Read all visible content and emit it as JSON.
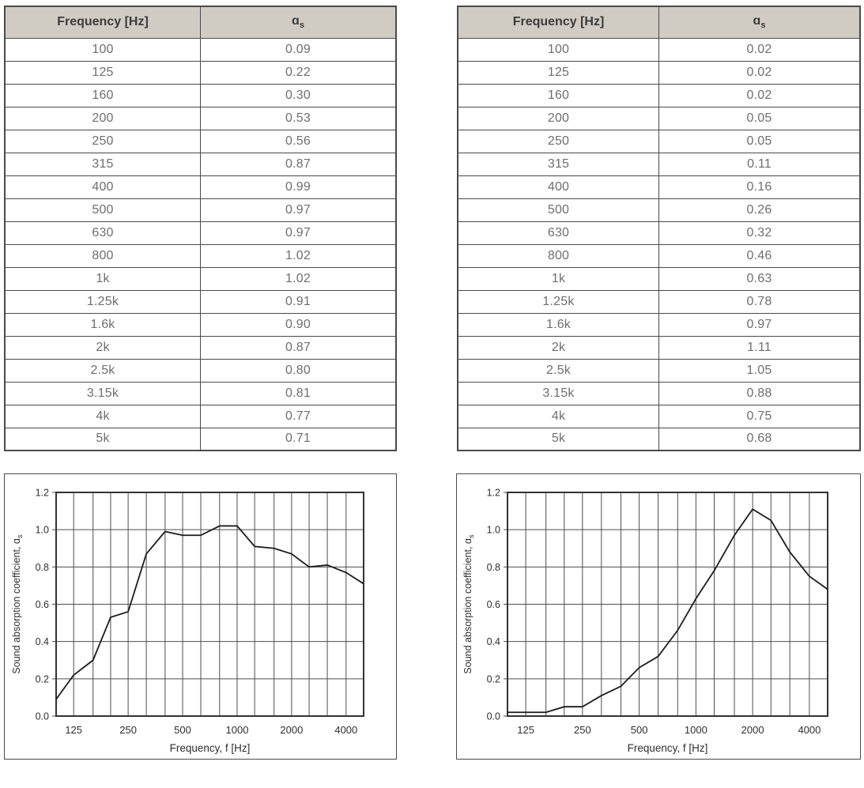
{
  "colors": {
    "header_bg": "#d1ccc3",
    "table_border": "#4a4a4a",
    "header_text": "#3b3b3b",
    "cell_text": "#6e6e6e",
    "chart_border": "#4a4a4a",
    "grid_line": "#4d4d4d",
    "data_line": "#1c1c1c",
    "tick_text": "#2e2e2e",
    "page_bg": "#ffffff"
  },
  "tables": [
    {
      "header_freq": "Frequency [Hz]",
      "header_alpha": "ɑ",
      "header_alpha_sub": "s",
      "rows": [
        [
          "100",
          "0.09"
        ],
        [
          "125",
          "0.22"
        ],
        [
          "160",
          "0.30"
        ],
        [
          "200",
          "0.53"
        ],
        [
          "250",
          "0.56"
        ],
        [
          "315",
          "0.87"
        ],
        [
          "400",
          "0.99"
        ],
        [
          "500",
          "0.97"
        ],
        [
          "630",
          "0.97"
        ],
        [
          "800",
          "1.02"
        ],
        [
          "1k",
          "1.02"
        ],
        [
          "1.25k",
          "0.91"
        ],
        [
          "1.6k",
          "0.90"
        ],
        [
          "2k",
          "0.87"
        ],
        [
          "2.5k",
          "0.80"
        ],
        [
          "3.15k",
          "0.81"
        ],
        [
          "4k",
          "0.77"
        ],
        [
          "5k",
          "0.71"
        ]
      ]
    },
    {
      "header_freq": "Frequency [Hz]",
      "header_alpha": "ɑ",
      "header_alpha_sub": "s",
      "rows": [
        [
          "100",
          "0.02"
        ],
        [
          "125",
          "0.02"
        ],
        [
          "160",
          "0.02"
        ],
        [
          "200",
          "0.05"
        ],
        [
          "250",
          "0.05"
        ],
        [
          "315",
          "0.11"
        ],
        [
          "400",
          "0.16"
        ],
        [
          "500",
          "0.26"
        ],
        [
          "630",
          "0.32"
        ],
        [
          "800",
          "0.46"
        ],
        [
          "1k",
          "0.63"
        ],
        [
          "1.25k",
          "0.78"
        ],
        [
          "1.6k",
          "0.97"
        ],
        [
          "2k",
          "1.11"
        ],
        [
          "2.5k",
          "1.05"
        ],
        [
          "3.15k",
          "0.88"
        ],
        [
          "4k",
          "0.75"
        ],
        [
          "5k",
          "0.68"
        ]
      ]
    }
  ],
  "chart_data": [
    {
      "type": "line",
      "xscale": "log",
      "xlim": [
        100,
        5000
      ],
      "ylim": [
        0,
        1.2
      ],
      "x": [
        100,
        125,
        160,
        200,
        250,
        315,
        400,
        500,
        630,
        800,
        1000,
        1250,
        1600,
        2000,
        2500,
        3150,
        4000,
        5000
      ],
      "y": [
        0.09,
        0.22,
        0.3,
        0.53,
        0.56,
        0.87,
        0.99,
        0.97,
        0.97,
        1.02,
        1.02,
        0.91,
        0.9,
        0.87,
        0.8,
        0.81,
        0.77,
        0.71
      ],
      "grid": true,
      "grid_x": [
        100,
        125,
        160,
        200,
        250,
        315,
        400,
        500,
        630,
        800,
        1000,
        1250,
        1600,
        2000,
        2500,
        3150,
        4000,
        5000
      ],
      "yticks": [
        0,
        0.2,
        0.4,
        0.6,
        0.8,
        1.0,
        1.2
      ],
      "xtick_values": [
        125,
        250,
        500,
        1000,
        2000,
        4000
      ],
      "xtick_labels": [
        "125",
        "250",
        "500",
        "1000",
        "2000",
        "4000"
      ],
      "xlabel": "Frequency, f [Hz]",
      "ylabel": "Sound absorption coefficient, ɑ",
      "ylabel_sub": "s",
      "legend": "none",
      "title": ""
    },
    {
      "type": "line",
      "xscale": "log",
      "xlim": [
        100,
        5000
      ],
      "ylim": [
        0,
        1.2
      ],
      "x": [
        100,
        125,
        160,
        200,
        250,
        315,
        400,
        500,
        630,
        800,
        1000,
        1250,
        1600,
        2000,
        2500,
        3150,
        4000,
        5000
      ],
      "y": [
        0.02,
        0.02,
        0.02,
        0.05,
        0.05,
        0.11,
        0.16,
        0.26,
        0.32,
        0.46,
        0.63,
        0.78,
        0.97,
        1.11,
        1.05,
        0.88,
        0.75,
        0.68
      ],
      "grid": true,
      "grid_x": [
        100,
        125,
        160,
        200,
        250,
        315,
        400,
        500,
        630,
        800,
        1000,
        1250,
        1600,
        2000,
        2500,
        3150,
        4000,
        5000
      ],
      "yticks": [
        0,
        0.2,
        0.4,
        0.6,
        0.8,
        1.0,
        1.2
      ],
      "xtick_values": [
        125,
        250,
        500,
        1000,
        2000,
        4000
      ],
      "xtick_labels": [
        "125",
        "250",
        "500",
        "1000",
        "2000",
        "4000"
      ],
      "xlabel": "Frequency, f [Hz]",
      "ylabel": "Sound absorption coefficient, ɑ",
      "ylabel_sub": "s",
      "legend": "none",
      "title": ""
    }
  ]
}
